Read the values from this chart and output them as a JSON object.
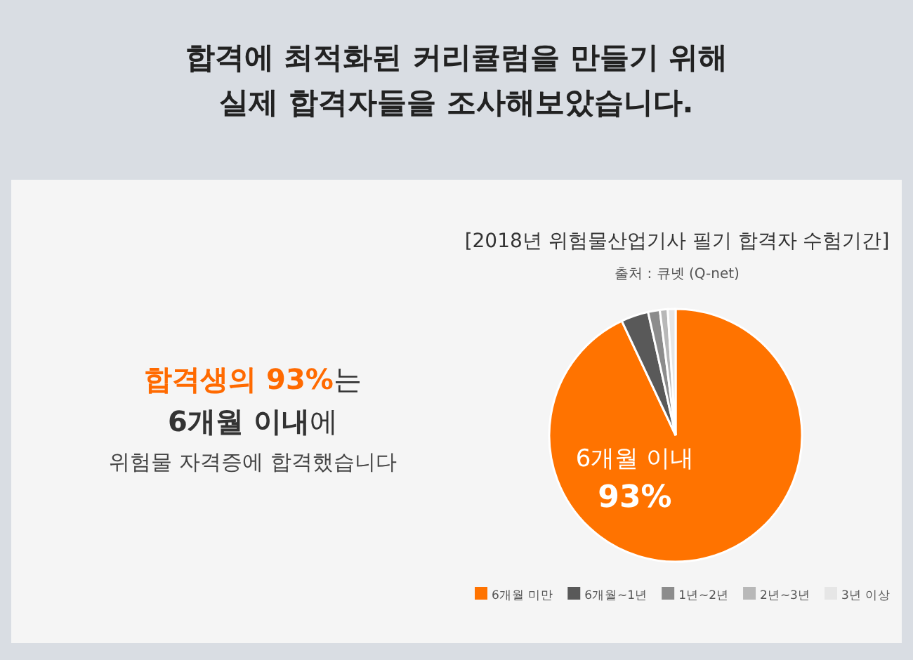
{
  "chart_data": {
    "type": "pie",
    "title": "합격에 최적화된 커리큘럼을 만들기 위해 실제 합격자들을 조사해보았습니다.",
    "subtitle": "[2018년 위험물산업기사 필기 합격자 수험기간]",
    "categories": [
      "6개월 미만",
      "6개월~1년",
      "1년~2년",
      "2년~3년",
      "3년 이상"
    ],
    "values": [
      93,
      3.5,
      1.5,
      1,
      1
    ],
    "colors": [
      "#ff7300",
      "#595959",
      "#8c8c8c",
      "#b8b8b8",
      "#e6e6e6"
    ],
    "value_labels": [
      "93%",
      null,
      null,
      null,
      null
    ],
    "legend": "bottom",
    "annotations": [
      "출처 : 큐넷 (Q-net)",
      "**합격생의 93%**는",
      "**6개월 이내**에",
      "위험물 자격증에 합격했습니다",
      "6개월 이내"
    ]
  }
}
